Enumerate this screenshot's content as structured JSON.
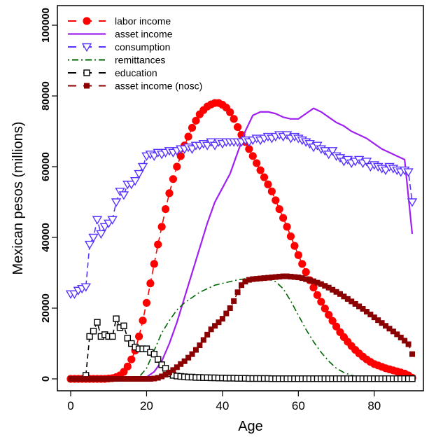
{
  "chart_data": {
    "type": "line",
    "title": "",
    "xlabel": "Age",
    "ylabel": "Mexican pesos (millions)",
    "xlim": [
      0,
      90
    ],
    "ylim": [
      0,
      100000
    ],
    "xticks": [
      0,
      20,
      40,
      60,
      80
    ],
    "xtick_labels": [
      "0",
      "20",
      "40",
      "60",
      "80"
    ],
    "yticks": [
      0,
      20000,
      40000,
      60000,
      80000,
      100000
    ],
    "ytick_labels": [
      "0",
      "20000",
      "40000",
      "60000",
      "80000",
      "100000"
    ],
    "grid": false,
    "legend_position": "top-left",
    "series": [
      {
        "name": "labor income",
        "color": "#ff0000",
        "style": "dashed-circle",
        "x": [
          0,
          1,
          2,
          3,
          4,
          5,
          6,
          7,
          8,
          9,
          10,
          11,
          12,
          13,
          14,
          15,
          16,
          17,
          18,
          19,
          20,
          21,
          22,
          23,
          24,
          25,
          26,
          27,
          28,
          29,
          30,
          31,
          32,
          33,
          34,
          35,
          36,
          37,
          38,
          39,
          40,
          41,
          42,
          43,
          44,
          45,
          46,
          47,
          48,
          49,
          50,
          51,
          52,
          53,
          54,
          55,
          56,
          57,
          58,
          59,
          60,
          61,
          62,
          63,
          64,
          65,
          66,
          67,
          68,
          69,
          70,
          71,
          72,
          73,
          74,
          75,
          76,
          77,
          78,
          79,
          80,
          81,
          82,
          83,
          84,
          85,
          86,
          87,
          88,
          89,
          90
        ],
        "values": [
          0,
          0,
          0,
          0,
          0,
          0,
          0,
          0,
          0,
          0,
          100,
          200,
          500,
          1000,
          2000,
          3500,
          5500,
          8000,
          12000,
          16500,
          21500,
          27000,
          32500,
          38000,
          43000,
          48000,
          52500,
          56500,
          60000,
          63000,
          66000,
          68500,
          71000,
          73000,
          74800,
          76000,
          77000,
          77600,
          78000,
          78000,
          77500,
          76700,
          75400,
          73500,
          71200,
          69000,
          67000,
          65000,
          63000,
          61000,
          59000,
          57000,
          55000,
          53000,
          50500,
          48000,
          45500,
          43000,
          40300,
          37600,
          35000,
          32500,
          30200,
          27900,
          25800,
          23700,
          21800,
          19900,
          18100,
          16400,
          14800,
          13200,
          11800,
          10500,
          9300,
          8200,
          7200,
          6300,
          5500,
          4800,
          4200,
          3800,
          3400,
          3000,
          2700,
          2400,
          2100,
          1800,
          1500,
          1000,
          300
        ]
      },
      {
        "name": "asset income",
        "color": "#a020f0",
        "style": "solid",
        "x": [
          18,
          20,
          22,
          24,
          26,
          28,
          30,
          32,
          34,
          36,
          38,
          40,
          42,
          44,
          46,
          48,
          50,
          52,
          54,
          56,
          58,
          60,
          62,
          64,
          66,
          68,
          70,
          72,
          74,
          76,
          78,
          80,
          82,
          84,
          86,
          88,
          90
        ],
        "values": [
          0,
          500,
          2000,
          5000,
          10000,
          16000,
          23000,
          30000,
          37000,
          44000,
          50000,
          54000,
          58000,
          64000,
          70000,
          74500,
          75500,
          75500,
          75000,
          74000,
          73500,
          73500,
          75000,
          76500,
          75500,
          74000,
          72500,
          71500,
          70000,
          69000,
          68000,
          66500,
          65000,
          64000,
          63000,
          62000,
          41000
        ]
      },
      {
        "name": "consumption",
        "color": "#5a32ff",
        "style": "dashed-triangle",
        "x": [
          0,
          1,
          2,
          3,
          4,
          5,
          6,
          7,
          8,
          9,
          10,
          11,
          12,
          13,
          14,
          15,
          16,
          17,
          18,
          19,
          20,
          21,
          22,
          23,
          24,
          25,
          26,
          27,
          28,
          29,
          30,
          31,
          32,
          33,
          34,
          35,
          36,
          37,
          38,
          39,
          40,
          41,
          42,
          43,
          44,
          45,
          46,
          47,
          48,
          49,
          50,
          51,
          52,
          53,
          54,
          55,
          56,
          57,
          58,
          59,
          60,
          61,
          62,
          63,
          64,
          65,
          66,
          67,
          68,
          69,
          70,
          71,
          72,
          73,
          74,
          75,
          76,
          77,
          78,
          79,
          80,
          81,
          82,
          83,
          84,
          85,
          86,
          87,
          88,
          89,
          90
        ],
        "values": [
          24000,
          24000,
          25000,
          25500,
          26000,
          38000,
          40000,
          45000,
          41000,
          43000,
          44000,
          45000,
          50000,
          53000,
          52000,
          55000,
          55000,
          56000,
          58000,
          60000,
          63000,
          63500,
          63000,
          64000,
          63500,
          64000,
          64500,
          64000,
          64500,
          65000,
          65000,
          65500,
          65000,
          66000,
          66000,
          66500,
          66000,
          67000,
          66000,
          67000,
          66500,
          67000,
          67000,
          67000,
          67000,
          67000,
          67500,
          67000,
          67500,
          68000,
          67500,
          68000,
          68500,
          68000,
          68500,
          69000,
          68500,
          69000,
          68000,
          68500,
          68000,
          67500,
          67000,
          66500,
          65500,
          66000,
          65000,
          64500,
          63500,
          64500,
          63000,
          62500,
          61500,
          62000,
          61000,
          61500,
          62000,
          61000,
          61500,
          60000,
          60500,
          60000,
          59500,
          59000,
          60000,
          59500,
          59000,
          58500,
          59000,
          58500,
          50000
        ]
      },
      {
        "name": "remittances",
        "color": "#006400",
        "style": "dotdash",
        "x": [
          14,
          16,
          18,
          20,
          22,
          24,
          26,
          28,
          30,
          32,
          34,
          36,
          38,
          40,
          42,
          44,
          46,
          48,
          50,
          52,
          54,
          56,
          58,
          60,
          62,
          64,
          66,
          68,
          70,
          72,
          74,
          76,
          78,
          80,
          82,
          84,
          86,
          88,
          90
        ],
        "values": [
          0,
          0,
          500,
          3000,
          8000,
          13000,
          16500,
          19500,
          21500,
          23000,
          24500,
          25500,
          26500,
          27000,
          27500,
          28000,
          28300,
          28500,
          28500,
          28200,
          27500,
          25500,
          22000,
          18000,
          14000,
          10500,
          7500,
          5000,
          3000,
          1800,
          1000,
          500,
          300,
          150,
          100,
          50,
          50,
          0,
          0
        ]
      },
      {
        "name": "education",
        "color": "#000000",
        "style": "dashed-open-square",
        "x": [
          4,
          5,
          6,
          7,
          8,
          9,
          10,
          11,
          12,
          13,
          14,
          15,
          16,
          17,
          18,
          19,
          20,
          21,
          22,
          23,
          24,
          25,
          26,
          27,
          28,
          29,
          30,
          31,
          32,
          33,
          34,
          35,
          36,
          37,
          38,
          39,
          40,
          41,
          42,
          43,
          44,
          45,
          46,
          47,
          48,
          49,
          50,
          51,
          52,
          53,
          54,
          55,
          56,
          57,
          58,
          59,
          60,
          61,
          62,
          63,
          64,
          65,
          66,
          67,
          68,
          69,
          70,
          71,
          72,
          73,
          74,
          75,
          76,
          77,
          78,
          79,
          80,
          81,
          82,
          83,
          84,
          85,
          86,
          87,
          88,
          89,
          90
        ],
        "values": [
          1000,
          12000,
          13500,
          16000,
          12000,
          12500,
          12000,
          12000,
          17000,
          14500,
          15000,
          11500,
          10000,
          9000,
          8500,
          8500,
          8500,
          7500,
          7000,
          5500,
          4000,
          3000,
          1500,
          1000,
          800,
          700,
          600,
          500,
          500,
          400,
          400,
          350,
          350,
          300,
          300,
          250,
          250,
          200,
          200,
          200,
          150,
          150,
          150,
          100,
          100,
          100,
          100,
          100,
          100,
          50,
          50,
          50,
          50,
          50,
          50,
          50,
          50,
          50,
          50,
          50,
          50,
          50,
          50,
          50,
          50,
          50,
          50,
          50,
          50,
          50,
          50,
          50,
          50,
          50,
          50,
          50,
          50,
          50,
          50,
          50,
          50,
          50,
          50,
          50,
          50,
          50,
          50
        ]
      },
      {
        "name": "asset income (nosc)",
        "color": "#8b0000",
        "style": "dashed-filled-square",
        "x": [
          0,
          1,
          2,
          3,
          4,
          5,
          6,
          7,
          8,
          9,
          10,
          11,
          12,
          13,
          14,
          15,
          16,
          17,
          18,
          19,
          20,
          21,
          22,
          23,
          24,
          25,
          26,
          27,
          28,
          29,
          30,
          31,
          32,
          33,
          34,
          35,
          36,
          37,
          38,
          39,
          40,
          41,
          42,
          43,
          44,
          45,
          46,
          47,
          48,
          49,
          50,
          51,
          52,
          53,
          54,
          55,
          56,
          57,
          58,
          59,
          60,
          61,
          62,
          63,
          64,
          65,
          66,
          67,
          68,
          69,
          70,
          71,
          72,
          73,
          74,
          75,
          76,
          77,
          78,
          79,
          80,
          81,
          82,
          83,
          84,
          85,
          86,
          87,
          88,
          89,
          90
        ],
        "values": [
          0,
          0,
          0,
          0,
          0,
          0,
          0,
          0,
          0,
          0,
          0,
          0,
          0,
          0,
          0,
          0,
          0,
          0,
          0,
          0,
          0,
          0,
          100,
          300,
          700,
          1200,
          1800,
          2500,
          3300,
          4200,
          5000,
          6000,
          7000,
          8200,
          9500,
          11000,
          12500,
          14000,
          15000,
          16000,
          17000,
          18500,
          20000,
          22000,
          24500,
          26500,
          27500,
          28000,
          28200,
          28300,
          28400,
          28500,
          28600,
          28700,
          28800,
          28900,
          29000,
          29000,
          28900,
          28800,
          28700,
          28500,
          28200,
          27900,
          27600,
          27200,
          26800,
          26300,
          25800,
          25200,
          24600,
          24000,
          23300,
          22600,
          21900,
          21200,
          20500,
          19800,
          19000,
          18200,
          17400,
          16600,
          15800,
          15000,
          14200,
          13400,
          12600,
          11700,
          10800,
          9800,
          7000
        ]
      }
    ]
  }
}
